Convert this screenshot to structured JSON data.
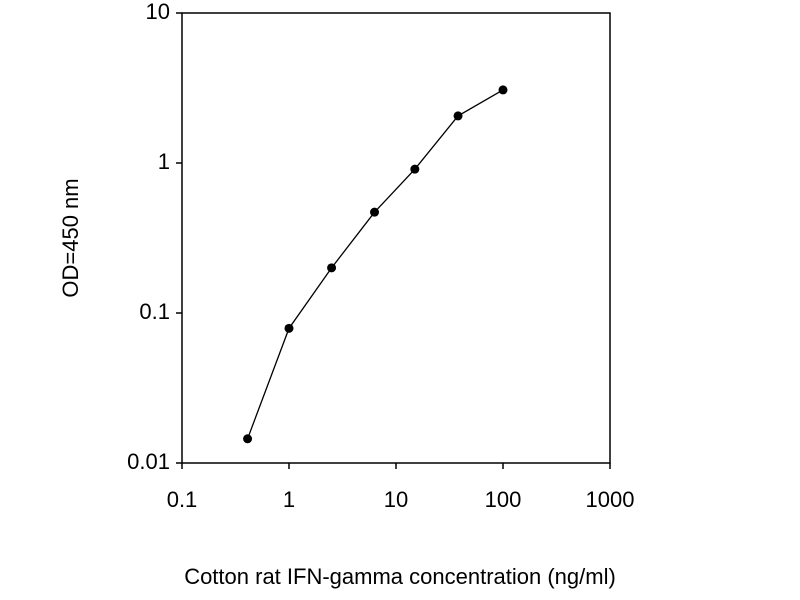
{
  "chart_data": {
    "type": "line",
    "x_label": "Cotton rat IFN-gamma concentration (ng/ml)",
    "y_label": "OD=450 nm",
    "x": [
      0.41,
      1,
      2.5,
      6.3,
      15,
      38,
      100
    ],
    "series": [
      {
        "color": "#000000",
        "values": [
          0.0145,
          0.079,
          0.2,
          0.47,
          0.91,
          2.06,
          3.07
        ]
      }
    ],
    "xlim": [
      0.1,
      1000
    ],
    "xticks": [
      0.1,
      1,
      10,
      100,
      1000
    ],
    "ylim": [
      0.01,
      10
    ],
    "yticks": [
      0.01,
      0.1,
      1,
      10
    ],
    "xlog": true,
    "ylog": true,
    "grid": false
  }
}
